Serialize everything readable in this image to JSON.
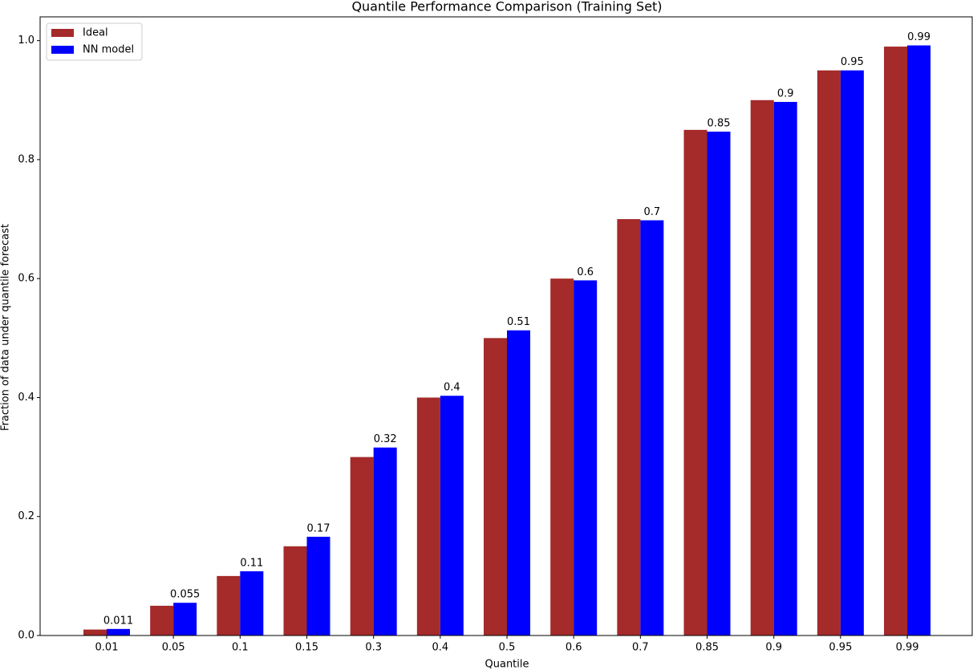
{
  "chart_data": {
    "type": "bar",
    "title": "Quantile Performance Comparison (Training Set)",
    "x_label": "Quantile",
    "y_label": "Fraction of data under quantile forecast",
    "categories": [
      "0.01",
      "0.05",
      "0.1",
      "0.15",
      "0.3",
      "0.4",
      "0.5",
      "0.6",
      "0.7",
      "0.85",
      "0.9",
      "0.95",
      "0.99"
    ],
    "series": [
      {
        "name": "Ideal",
        "color": "#a52a2a",
        "values": [
          0.01,
          0.05,
          0.1,
          0.15,
          0.3,
          0.4,
          0.5,
          0.6,
          0.7,
          0.85,
          0.9,
          0.95,
          0.99
        ]
      },
      {
        "name": "NN model",
        "color": "#0000ff",
        "values": [
          0.011,
          0.055,
          0.108,
          0.166,
          0.316,
          0.403,
          0.513,
          0.597,
          0.698,
          0.847,
          0.897,
          0.95,
          0.992
        ],
        "value_labels": [
          "0.011",
          "0.055",
          "0.11",
          "0.17",
          "0.32",
          "0.4",
          "0.51",
          "0.6",
          "0.7",
          "0.85",
          "0.9",
          "0.95",
          "0.99"
        ]
      }
    ],
    "ylim": [
      0,
      1.04
    ],
    "yticks": [
      {
        "value": 0,
        "label": "0.0"
      },
      0.2,
      0.4,
      0.6,
      0.8,
      {
        "value": 1,
        "label": "1.0"
      }
    ],
    "legend": "upper left",
    "grid": false
  }
}
